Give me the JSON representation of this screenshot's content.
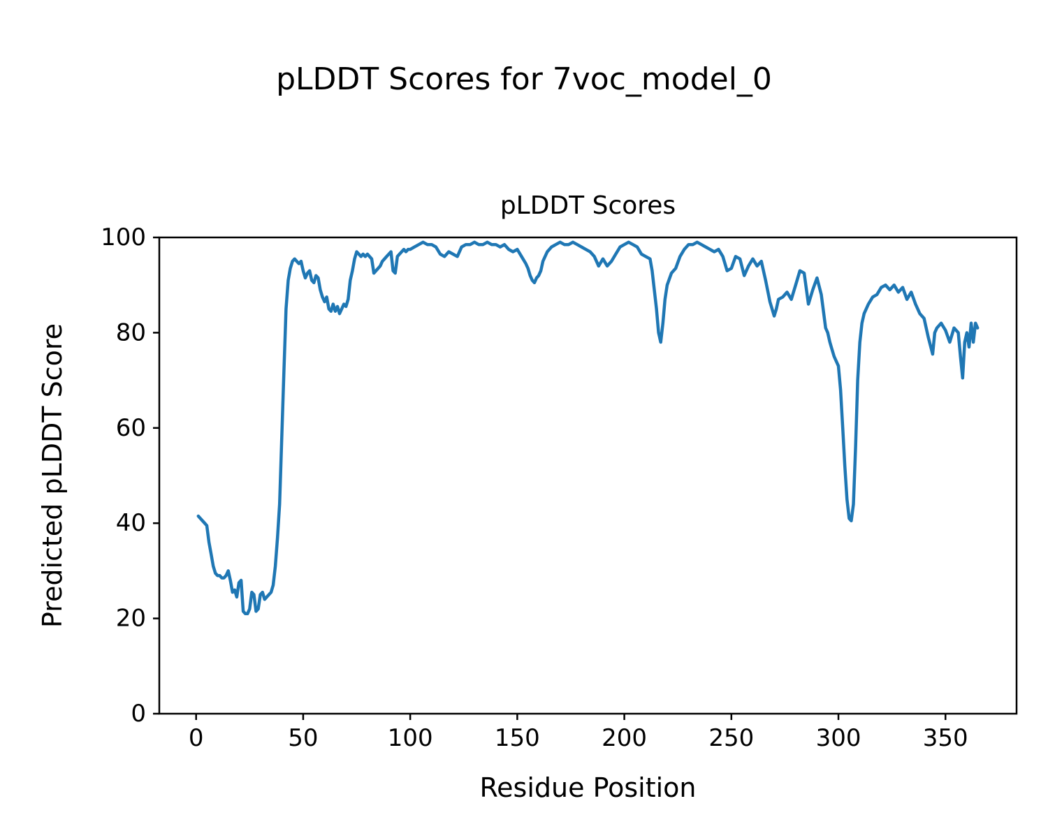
{
  "figure": {
    "suptitle": "pLDDT Scores for 7voc_model_0",
    "axes_title": "pLDDT Scores",
    "xlabel": "Residue Position",
    "ylabel": "Predicted pLDDT Score"
  },
  "chart_data": {
    "type": "line",
    "title": "pLDDT Scores",
    "suptitle": "pLDDT Scores for 7voc_model_0",
    "xlabel": "Residue Position",
    "ylabel": "Predicted pLDDT Score",
    "xlim": [
      -17.2,
      383.2
    ],
    "ylim": [
      0,
      100
    ],
    "xticks": [
      0,
      50,
      100,
      150,
      200,
      250,
      300,
      350
    ],
    "yticks": [
      0,
      20,
      40,
      60,
      80,
      100
    ],
    "grid": false,
    "legend": null,
    "line_color": "#1f77b4",
    "line_width": 4.5,
    "series": [
      {
        "name": "pLDDT",
        "points": [
          [
            1,
            41.5
          ],
          [
            2,
            41
          ],
          [
            3,
            40.5
          ],
          [
            4,
            40
          ],
          [
            5,
            39.5
          ],
          [
            6,
            36
          ],
          [
            7,
            33.5
          ],
          [
            8,
            31
          ],
          [
            9,
            29.5
          ],
          [
            10,
            29
          ],
          [
            11,
            29
          ],
          [
            12,
            28.5
          ],
          [
            13,
            28.5
          ],
          [
            14,
            29
          ],
          [
            15,
            30
          ],
          [
            16,
            28
          ],
          [
            17,
            25.5
          ],
          [
            18,
            26
          ],
          [
            19,
            24.5
          ],
          [
            20,
            27.5
          ],
          [
            21,
            28
          ],
          [
            22,
            21.5
          ],
          [
            23,
            21
          ],
          [
            24,
            21
          ],
          [
            25,
            22
          ],
          [
            26,
            25.5
          ],
          [
            27,
            25
          ],
          [
            28,
            21.5
          ],
          [
            29,
            22
          ],
          [
            30,
            25
          ],
          [
            31,
            25.5
          ],
          [
            32,
            24
          ],
          [
            33,
            24.5
          ],
          [
            34,
            25
          ],
          [
            35,
            25.5
          ],
          [
            36,
            27
          ],
          [
            37,
            31
          ],
          [
            38,
            37
          ],
          [
            39,
            44
          ],
          [
            40,
            58
          ],
          [
            41,
            72
          ],
          [
            42,
            85
          ],
          [
            43,
            91
          ],
          [
            44,
            93.5
          ],
          [
            45,
            95
          ],
          [
            46,
            95.5
          ],
          [
            47,
            95
          ],
          [
            48,
            94.5
          ],
          [
            49,
            95
          ],
          [
            50,
            93
          ],
          [
            51,
            91.5
          ],
          [
            52,
            92.5
          ],
          [
            53,
            93
          ],
          [
            54,
            91
          ],
          [
            55,
            90.5
          ],
          [
            56,
            92
          ],
          [
            57,
            91.5
          ],
          [
            58,
            89
          ],
          [
            59,
            87.5
          ],
          [
            60,
            86.5
          ],
          [
            61,
            87.5
          ],
          [
            62,
            85
          ],
          [
            63,
            84.5
          ],
          [
            64,
            86
          ],
          [
            65,
            84.5
          ],
          [
            66,
            85.5
          ],
          [
            67,
            84
          ],
          [
            68,
            85
          ],
          [
            69,
            86
          ],
          [
            70,
            85.5
          ],
          [
            71,
            87
          ],
          [
            72,
            91
          ],
          [
            73,
            93
          ],
          [
            74,
            95.5
          ],
          [
            75,
            97
          ],
          [
            76,
            96.5
          ],
          [
            77,
            96
          ],
          [
            78,
            96.5
          ],
          [
            79,
            96
          ],
          [
            80,
            96.5
          ],
          [
            81,
            96
          ],
          [
            82,
            95.5
          ],
          [
            83,
            92.5
          ],
          [
            84,
            93
          ],
          [
            85,
            93.5
          ],
          [
            86,
            94
          ],
          [
            87,
            95
          ],
          [
            88,
            95.5
          ],
          [
            89,
            96
          ],
          [
            90,
            96.5
          ],
          [
            91,
            97
          ],
          [
            92,
            93
          ],
          [
            93,
            92.5
          ],
          [
            94,
            96
          ],
          [
            95,
            96.5
          ],
          [
            96,
            97
          ],
          [
            97,
            97.5
          ],
          [
            98,
            97
          ],
          [
            99,
            97.5
          ],
          [
            100,
            97.5
          ],
          [
            102,
            98
          ],
          [
            104,
            98.5
          ],
          [
            106,
            99
          ],
          [
            108,
            98.5
          ],
          [
            110,
            98.5
          ],
          [
            112,
            98
          ],
          [
            114,
            96.5
          ],
          [
            116,
            96
          ],
          [
            118,
            97
          ],
          [
            120,
            96.5
          ],
          [
            122,
            96
          ],
          [
            124,
            98
          ],
          [
            126,
            98.5
          ],
          [
            128,
            98.5
          ],
          [
            130,
            99
          ],
          [
            132,
            98.5
          ],
          [
            134,
            98.5
          ],
          [
            136,
            99
          ],
          [
            138,
            98.5
          ],
          [
            140,
            98.5
          ],
          [
            142,
            98
          ],
          [
            144,
            98.5
          ],
          [
            146,
            97.5
          ],
          [
            148,
            97
          ],
          [
            150,
            97.5
          ],
          [
            152,
            96
          ],
          [
            154,
            94.5
          ],
          [
            155,
            93.5
          ],
          [
            156,
            92
          ],
          [
            157,
            91
          ],
          [
            158,
            90.5
          ],
          [
            159,
            91.5
          ],
          [
            160,
            92
          ],
          [
            161,
            93
          ],
          [
            162,
            95
          ],
          [
            164,
            97
          ],
          [
            166,
            98
          ],
          [
            168,
            98.5
          ],
          [
            170,
            99
          ],
          [
            172,
            98.5
          ],
          [
            174,
            98.5
          ],
          [
            176,
            99
          ],
          [
            178,
            98.5
          ],
          [
            180,
            98
          ],
          [
            182,
            97.5
          ],
          [
            184,
            97
          ],
          [
            186,
            96
          ],
          [
            188,
            94
          ],
          [
            190,
            95.5
          ],
          [
            192,
            94
          ],
          [
            194,
            95
          ],
          [
            196,
            96.5
          ],
          [
            198,
            98
          ],
          [
            200,
            98.5
          ],
          [
            202,
            99
          ],
          [
            204,
            98.5
          ],
          [
            206,
            98
          ],
          [
            208,
            96.5
          ],
          [
            210,
            96
          ],
          [
            212,
            95.5
          ],
          [
            213,
            93
          ],
          [
            214,
            89
          ],
          [
            215,
            85
          ],
          [
            216,
            80
          ],
          [
            217,
            78
          ],
          [
            218,
            82
          ],
          [
            219,
            87
          ],
          [
            220,
            90
          ],
          [
            222,
            92.5
          ],
          [
            224,
            93.5
          ],
          [
            226,
            96
          ],
          [
            228,
            97.5
          ],
          [
            230,
            98.5
          ],
          [
            232,
            98.5
          ],
          [
            234,
            99
          ],
          [
            236,
            98.5
          ],
          [
            238,
            98
          ],
          [
            240,
            97.5
          ],
          [
            242,
            97
          ],
          [
            244,
            97.5
          ],
          [
            246,
            96
          ],
          [
            248,
            93
          ],
          [
            250,
            93.5
          ],
          [
            252,
            96
          ],
          [
            254,
            95.5
          ],
          [
            256,
            92
          ],
          [
            258,
            94
          ],
          [
            260,
            95.5
          ],
          [
            262,
            94
          ],
          [
            264,
            95
          ],
          [
            266,
            91
          ],
          [
            268,
            86.5
          ],
          [
            270,
            83.5
          ],
          [
            271,
            85
          ],
          [
            272,
            87
          ],
          [
            274,
            87.5
          ],
          [
            276,
            88.5
          ],
          [
            278,
            87
          ],
          [
            280,
            90
          ],
          [
            282,
            93
          ],
          [
            284,
            92.5
          ],
          [
            286,
            86
          ],
          [
            288,
            89
          ],
          [
            290,
            91.5
          ],
          [
            292,
            88
          ],
          [
            294,
            81
          ],
          [
            295,
            80
          ],
          [
            296,
            78
          ],
          [
            297,
            76.5
          ],
          [
            298,
            75
          ],
          [
            300,
            73
          ],
          [
            301,
            68
          ],
          [
            302,
            60
          ],
          [
            303,
            52
          ],
          [
            304,
            45
          ],
          [
            305,
            41
          ],
          [
            306,
            40.5
          ],
          [
            307,
            44
          ],
          [
            308,
            56
          ],
          [
            309,
            70
          ],
          [
            310,
            78
          ],
          [
            311,
            82
          ],
          [
            312,
            84
          ],
          [
            314,
            86
          ],
          [
            316,
            87.5
          ],
          [
            318,
            88
          ],
          [
            320,
            89.5
          ],
          [
            322,
            90
          ],
          [
            324,
            89
          ],
          [
            326,
            90
          ],
          [
            328,
            88.5
          ],
          [
            330,
            89.5
          ],
          [
            332,
            87
          ],
          [
            334,
            88.5
          ],
          [
            336,
            86
          ],
          [
            338,
            84
          ],
          [
            340,
            83
          ],
          [
            342,
            79
          ],
          [
            344,
            75.5
          ],
          [
            345,
            80
          ],
          [
            346,
            81
          ],
          [
            348,
            82
          ],
          [
            350,
            80.5
          ],
          [
            352,
            78
          ],
          [
            354,
            81
          ],
          [
            356,
            80
          ],
          [
            357,
            75
          ],
          [
            358,
            70.5
          ],
          [
            359,
            78
          ],
          [
            360,
            80
          ],
          [
            361,
            77
          ],
          [
            362,
            82
          ],
          [
            363,
            78
          ],
          [
            364,
            82
          ],
          [
            365,
            81
          ]
        ]
      }
    ]
  }
}
